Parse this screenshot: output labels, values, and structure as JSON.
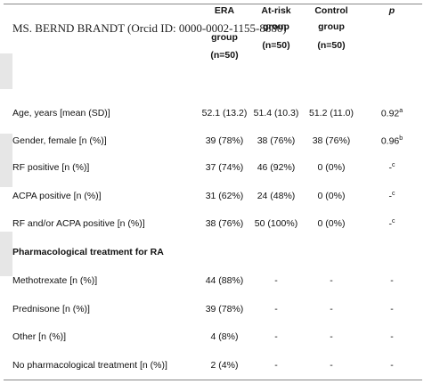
{
  "header": {
    "overlay": "MS. BERND BRANDT (Orcid ID: 0000-0002-1155-8880)"
  },
  "table": {
    "columns": [
      {
        "title": "ERA",
        "sub": "group",
        "n": "(n=50)"
      },
      {
        "title": "At-risk",
        "sub": "group",
        "n": "(n=50)"
      },
      {
        "title": "Control",
        "sub": "group",
        "n": "(n=50)"
      },
      {
        "title": "p"
      }
    ],
    "rows": [
      {
        "label": "Age, years [mean (SD)]",
        "cells": [
          "52.1 (13.2)",
          "51.4 (10.3)",
          "51.2 (11.0)",
          "0.92"
        ],
        "p_note": "a"
      },
      {
        "label": "Gender, female [n (%)]",
        "cells": [
          "39 (78%)",
          "38 (76%)",
          "38 (76%)",
          "0.96"
        ],
        "p_note": "b"
      },
      {
        "label": "RF positive [n (%)]",
        "cells": [
          "37 (74%)",
          "46 (92%)",
          "0 (0%)",
          "-"
        ],
        "p_note": "c"
      },
      {
        "label": "ACPA positive [n (%)]",
        "cells": [
          "31 (62%)",
          "24 (48%)",
          "0 (0%)",
          "-"
        ],
        "p_note": "c"
      },
      {
        "label": "RF and/or ACPA positive [n (%)]",
        "cells": [
          "38 (76%)",
          "50 (100%)",
          "0 (0%)",
          "-"
        ],
        "p_note": "c"
      },
      {
        "section": "Pharmacological treatment for RA"
      },
      {
        "label": "Methotrexate [n (%)]",
        "cells": [
          "44 (88%)",
          "-",
          "-",
          "-"
        ]
      },
      {
        "label": "Prednisone [n (%)]",
        "cells": [
          "39 (78%)",
          "-",
          "-",
          "-"
        ]
      },
      {
        "label": "Other [n (%)]",
        "cells": [
          "4 (8%)",
          "-",
          "-",
          "-"
        ]
      },
      {
        "label": "No pharmacological treatment [n (%)]",
        "cells": [
          "2 (4%)",
          "-",
          "-",
          "-"
        ]
      }
    ]
  }
}
